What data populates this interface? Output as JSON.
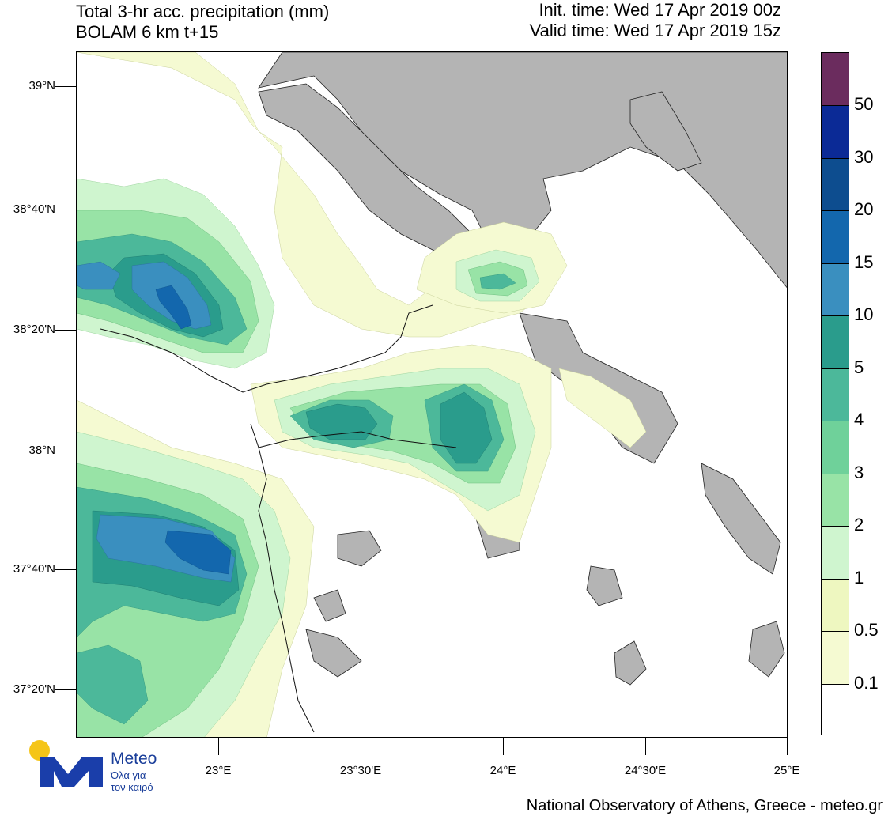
{
  "header": {
    "title_line1": "Total 3-hr acc. precipitation (mm)",
    "title_line2": "BOLAM 6 km t+15",
    "init_time": "Init. time: Wed 17 Apr 2019 00z",
    "valid_time": "Valid time: Wed 17 Apr 2019 15z"
  },
  "axes": {
    "lat_labels": [
      "39°N",
      "38°40'N",
      "38°20'N",
      "38°N",
      "37°40'N",
      "37°20'N"
    ],
    "lon_labels": [
      "23°E",
      "23°30'E",
      "24°E",
      "24°30'E",
      "25°E"
    ]
  },
  "colorbar": {
    "labels": [
      "50",
      "30",
      "20",
      "15",
      "10",
      "5",
      "4",
      "3",
      "2",
      "1",
      "0.5",
      "0.1"
    ],
    "colors": [
      "#6b2c5e",
      "#0b2a96",
      "#0d4d8f",
      "#1367ad",
      "#3a8fbf",
      "#2a9c8c",
      "#4cb89a",
      "#6fd19a",
      "#98e3a6",
      "#cff5cf",
      "#eef7c0",
      "#f5fad2",
      "#ffffff"
    ]
  },
  "colors": {
    "land": "#b4b4b4",
    "sea": "#ffffff",
    "border": "#000000"
  },
  "logo": {
    "name": "Meteo",
    "tagline_line1": "Όλα για",
    "tagline_line2": "τον καιρό",
    "accent": "#f5c518",
    "brand": "#1a3eaa"
  },
  "footer": {
    "credit": "National Observatory of Athens, Greece - meteo.gr"
  }
}
